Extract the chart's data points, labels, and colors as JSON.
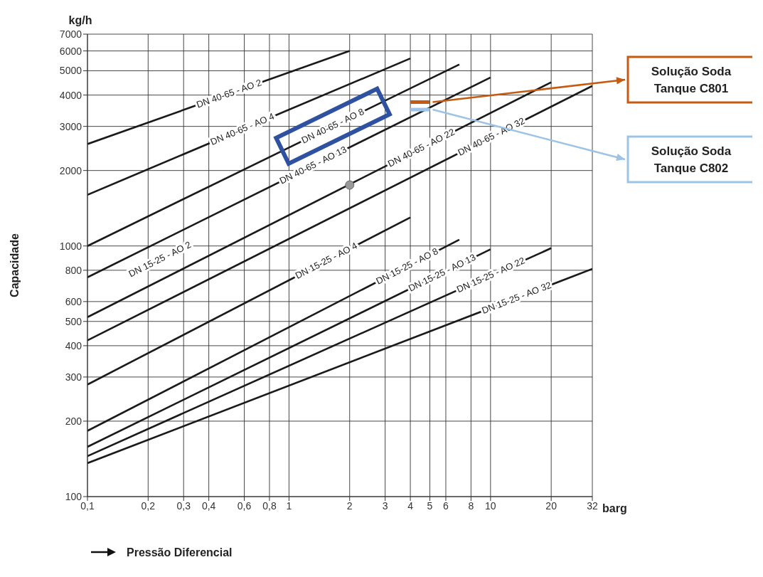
{
  "chart_data": {
    "type": "line",
    "xlabel": "Pressão Diferencial",
    "ylabel": "Capacidade",
    "annotations": [
      "kg/h",
      "barg",
      "DN 15-25 - AO 2",
      "Solução Soda Tanque C801",
      "Solução Soda Tanque C802"
    ],
    "series": [
      {
        "name": "DN 40-65 - AO 2",
        "color": "#1a1a1a",
        "x": [
          0.1,
          2
        ],
        "values": [
          2550,
          6000
        ]
      },
      {
        "name": "DN 40-65 - AO 4",
        "color": "#1a1a1a",
        "x": [
          0.1,
          4
        ],
        "values": [
          1600,
          5600
        ]
      },
      {
        "name": "DN 40-65 - AO 8",
        "color": "#1a1a1a",
        "x": [
          0.1,
          7
        ],
        "values": [
          1000,
          5300
        ]
      },
      {
        "name": "DN 40-65 - AO 13",
        "color": "#1a1a1a",
        "x": [
          0.1,
          10
        ],
        "values": [
          750,
          4700
        ]
      },
      {
        "name": "DN 40-65 - AO 22",
        "color": "#1a1a1a",
        "x": [
          0.1,
          20
        ],
        "values": [
          520,
          4500
        ]
      },
      {
        "name": "DN 40-65 - AO 32",
        "color": "#1a1a1a",
        "x": [
          0.1,
          32
        ],
        "values": [
          420,
          4350
        ]
      },
      {
        "name": "DN 15-25 - AO 4",
        "color": "#1a1a1a",
        "x": [
          0.1,
          4
        ],
        "values": [
          280,
          1300
        ]
      },
      {
        "name": "DN 15-25 - AO 8",
        "color": "#1a1a1a",
        "x": [
          0.1,
          7
        ],
        "values": [
          183,
          1060
        ]
      },
      {
        "name": "DN 15-25 - AO 13",
        "color": "#1a1a1a",
        "x": [
          0.1,
          10
        ],
        "values": [
          158,
          970
        ]
      },
      {
        "name": "DN 15-25 - AO 22",
        "color": "#1a1a1a",
        "x": [
          0.1,
          20
        ],
        "values": [
          145,
          980
        ]
      },
      {
        "name": "DN 15-25 - AO 32",
        "color": "#1a1a1a",
        "x": [
          0.1,
          32
        ],
        "values": [
          136,
          810
        ]
      },
      {
        "type": "scatter",
        "color": "#999999",
        "x": [
          2
        ],
        "values": [
          1750
        ]
      },
      {
        "color": "#c55a11",
        "x": [
          4,
          5
        ],
        "values": [
          3750,
          3750
        ]
      },
      {
        "color": "#9dc3e6",
        "x": [
          4,
          5
        ],
        "values": [
          3500,
          3500
        ]
      }
    ],
    "log": "xy",
    "xlim": [
      0.1,
      32
    ],
    "ylim": [
      100,
      7000
    ],
    "xticks": [
      {
        "value": 0.1,
        "label": "0,1"
      },
      {
        "value": 0.2,
        "label": "0,2"
      },
      {
        "value": 0.3,
        "label": "0,3"
      },
      {
        "value": 0.4,
        "label": "0,4"
      },
      {
        "value": 0.6,
        "label": "0,6"
      },
      {
        "value": 0.8,
        "label": "0,8"
      },
      1,
      2,
      3,
      4,
      5,
      6,
      8,
      10,
      20,
      32
    ],
    "yticks": [
      100,
      200,
      300,
      400,
      500,
      600,
      800,
      1000,
      2000,
      3000,
      4000,
      5000,
      6000,
      7000
    ],
    "grid": true,
    "legend": false,
    "line_style": "solid"
  }
}
